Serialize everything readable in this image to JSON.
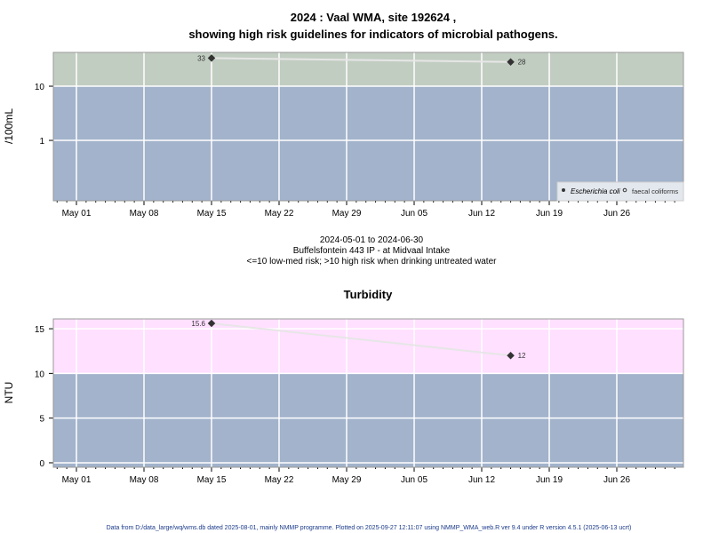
{
  "chart_data": [
    {
      "type": "line",
      "title_line1": "2024 : Vaal WMA, site 192624 ,",
      "title_line2": "showing high risk guidelines for indicators of microbial pathogens.",
      "ylabel": "/100mL",
      "yscale": "log",
      "ylim": [
        0.077,
        42
      ],
      "yticks": [
        {
          "v": 1,
          "label": "1"
        },
        {
          "v": 10,
          "label": "10"
        }
      ],
      "xlim": [
        "2024-04-28.6",
        "2024-07-03"
      ],
      "xticks": [
        "May 01",
        "May 08",
        "May 15",
        "May 22",
        "May 29",
        "Jun 05",
        "Jun 12",
        "Jun 19",
        "Jun 26"
      ],
      "band_threshold": 10,
      "band_colors": {
        "high": "#c2cdc2",
        "low": "#a2b3cb"
      },
      "series": [
        {
          "name": "Escherichia coli",
          "points": [
            {
              "day": 14,
              "value": 33,
              "label": "33"
            },
            {
              "day": 45,
              "value": 28,
              "label": "28"
            }
          ]
        }
      ],
      "legend": {
        "placement": "bottom-right",
        "items": [
          "Escherichia coli",
          "faecal coliforms"
        ]
      },
      "subtitle_lines": [
        "2024-05-01 to 2024-06-30",
        "Buffelsfontein 443 IP - at Midvaal Intake",
        "<=10 low-med risk; >10 high risk when drinking untreated water"
      ]
    },
    {
      "type": "line",
      "title": "Turbidity",
      "ylabel": "NTU",
      "yscale": "linear",
      "ylim": [
        -0.5,
        16.1
      ],
      "yticks": [
        {
          "v": 0,
          "label": "0"
        },
        {
          "v": 5,
          "label": "5"
        },
        {
          "v": 10,
          "label": "10"
        },
        {
          "v": 15,
          "label": "15"
        }
      ],
      "xticks": [
        "May 01",
        "May 08",
        "May 15",
        "May 22",
        "May 29",
        "Jun 05",
        "Jun 12",
        "Jun 19",
        "Jun 26"
      ],
      "band_threshold": 10,
      "band_colors": {
        "high": "#ffe0ff",
        "low": "#a2b3cb"
      },
      "series": [
        {
          "name": "Turbidity",
          "points": [
            {
              "day": 14,
              "value": 15.6,
              "label": "15.6"
            },
            {
              "day": 45,
              "value": 12,
              "label": "12"
            }
          ]
        }
      ]
    }
  ],
  "footer": "Data from D:/data_large/wq/wms.db dated 2025-08-01, mainly NMMP programme. Plotted on 2025-09-27 12:11:07 using NMMP_WMA_web.R ver 9.4 under R version 4.5.1 (2025-06-13 ucrt)"
}
